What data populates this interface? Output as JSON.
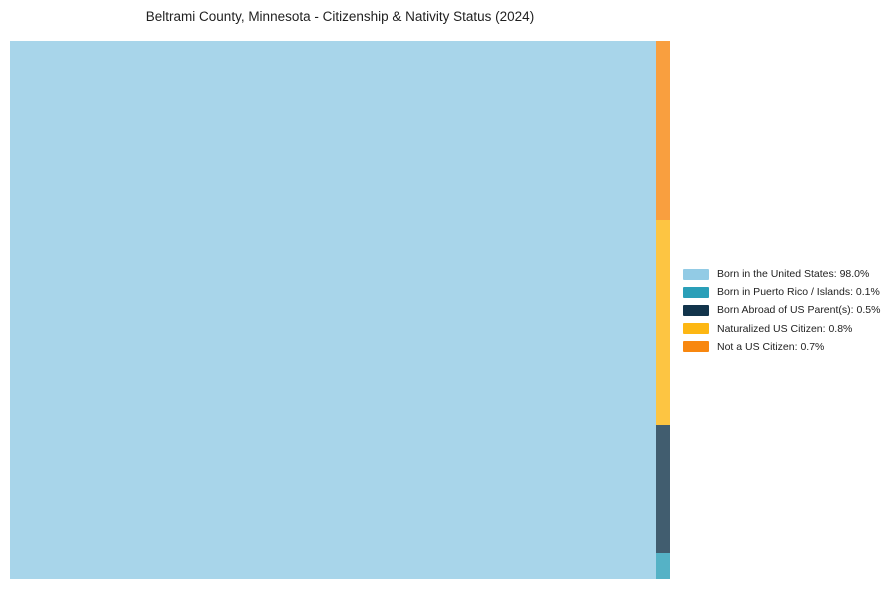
{
  "page": {
    "background": "#ffffff"
  },
  "chart_data": {
    "type": "treemap",
    "title": "Beltrami County, Minnesota - Citizenship & Nativity Status (2024)",
    "unit": "%",
    "series": [
      {
        "label": "Born in the United States",
        "value": 98.0,
        "color": "#92cbe5"
      },
      {
        "label": "Born in Puerto Rico / Islands",
        "value": 0.1,
        "color": "#2a9fb8"
      },
      {
        "label": "Born Abroad of US Parent(s)",
        "value": 0.5,
        "color": "#12344b"
      },
      {
        "label": "Naturalized US Citizen",
        "value": 0.8,
        "color": "#fdb713"
      },
      {
        "label": "Not a US Citizen",
        "value": 0.7,
        "color": "#f8870f"
      }
    ],
    "legend": {
      "position": "right-center",
      "entries": [
        "Born in the United States: 98.0%",
        "Born in Puerto Rico / Islands: 0.1%",
        "Born Abroad of US Parent(s): 0.5%",
        "Naturalized US Citizen: 0.8%",
        "Not a US Citizen: 0.7%"
      ]
    },
    "layout_hints": {
      "first_slice_direction": "left-full-height",
      "strip_order_top_to_bottom": [
        "Not a US Citizen",
        "Naturalized US Citizen",
        "Born Abroad of US Parent(s)",
        "Born in Puerto Rico / Islands"
      ],
      "rect_fill_opacity": 0.8,
      "grid": false,
      "axes": false
    }
  }
}
